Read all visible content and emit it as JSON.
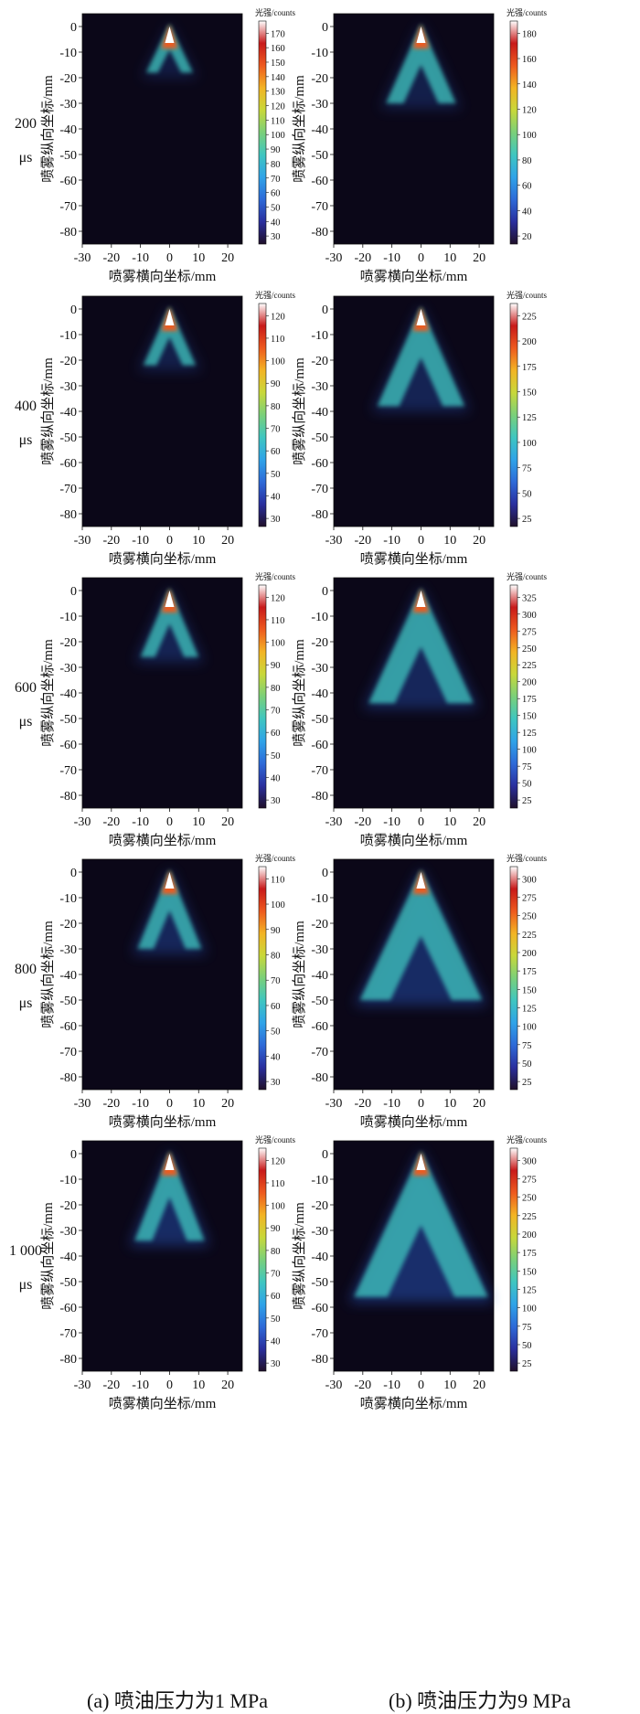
{
  "figure": {
    "colorbar_label": "光强/counts",
    "xlabel": "喷雾横向坐标/mm",
    "ylabel": "喷雾纵向坐标/mm",
    "x_ticks": [
      -30,
      -20,
      -10,
      0,
      10,
      20
    ],
    "y_ticks": [
      0,
      -10,
      -20,
      -30,
      -40,
      -50,
      -60,
      -70,
      -80
    ],
    "xlim": [
      -30,
      25
    ],
    "ylim": [
      -85,
      5
    ],
    "colormap": [
      "#20102a",
      "#2a2f9e",
      "#2e6ad8",
      "#2fa3e8",
      "#3fc6c0",
      "#7ad07a",
      "#c8d83a",
      "#f3b424",
      "#ee5a1e",
      "#c81a1a",
      "#ffffff"
    ],
    "background_color": "#0b0718",
    "columns": [
      {
        "caption": "(a) 喷油压力为1 MPa"
      },
      {
        "caption": "(b) 喷油压力为9 MPa"
      }
    ],
    "rows": [
      {
        "time": "200",
        "unit": "μs",
        "panels": [
          {
            "cbar_ticks": [
              30,
              40,
              50,
              60,
              70,
              80,
              90,
              100,
              110,
              120,
              130,
              140,
              150,
              160,
              170
            ]
          },
          {
            "cbar_ticks": [
              20,
              40,
              60,
              80,
              100,
              120,
              140,
              160,
              180
            ]
          }
        ]
      },
      {
        "time": "400",
        "unit": "μs",
        "panels": [
          {
            "cbar_ticks": [
              30,
              40,
              50,
              60,
              70,
              80,
              90,
              100,
              110,
              120
            ]
          },
          {
            "cbar_ticks": [
              25,
              50,
              75,
              100,
              125,
              150,
              175,
              200,
              225
            ]
          }
        ]
      },
      {
        "time": "600",
        "unit": "μs",
        "panels": [
          {
            "cbar_ticks": [
              30,
              40,
              50,
              60,
              70,
              80,
              90,
              100,
              110,
              120
            ]
          },
          {
            "cbar_ticks": [
              25,
              50,
              75,
              100,
              125,
              150,
              175,
              200,
              225,
              250,
              275,
              300,
              325
            ]
          }
        ]
      },
      {
        "time": "800",
        "unit": "μs",
        "panels": [
          {
            "cbar_ticks": [
              30,
              40,
              50,
              60,
              70,
              80,
              90,
              100,
              110
            ]
          },
          {
            "cbar_ticks": [
              25,
              50,
              75,
              100,
              125,
              150,
              175,
              200,
              225,
              250,
              275,
              300
            ]
          }
        ]
      },
      {
        "time": "1 000",
        "unit": "μs",
        "panels": [
          {
            "cbar_ticks": [
              30,
              40,
              50,
              60,
              70,
              80,
              90,
              100,
              110,
              120
            ]
          },
          {
            "cbar_ticks": [
              25,
              50,
              75,
              100,
              125,
              150,
              175,
              200,
              225,
              250,
              275,
              300
            ]
          }
        ]
      }
    ]
  }
}
